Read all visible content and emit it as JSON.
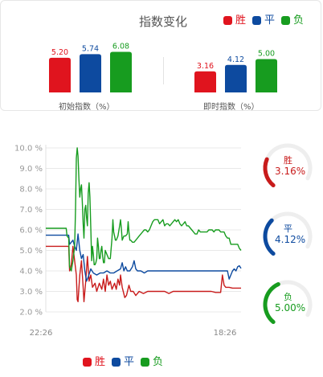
{
  "header": {
    "title": "指数变化",
    "legend": [
      {
        "label": "胜",
        "color": "#e0141e"
      },
      {
        "label": "平",
        "color": "#0d4a9f"
      },
      {
        "label": "负",
        "color": "#179c1f"
      }
    ]
  },
  "bar_groups": [
    {
      "label": "初始指数（%）",
      "values": [
        {
          "name": "胜",
          "value": "5.20"
        },
        {
          "name": "平",
          "value": "5.74"
        },
        {
          "name": "负",
          "value": "6.08"
        }
      ]
    },
    {
      "label": "即时指数（%）",
      "values": [
        {
          "name": "胜",
          "value": "3.16"
        },
        {
          "name": "平",
          "value": "4.12"
        },
        {
          "name": "负",
          "value": "5.00"
        }
      ]
    }
  ],
  "gauges": [
    {
      "label": "胜",
      "value": "3.16%",
      "fraction": 0.316,
      "color": "#c81b1b"
    },
    {
      "label": "平",
      "value": "4.12%",
      "fraction": 0.412,
      "color": "#0d4a9f"
    },
    {
      "label": "负",
      "value": "5.00%",
      "fraction": 0.5,
      "color": "#179c1f"
    }
  ],
  "chart_data": {
    "type": "line",
    "ylim": [
      2.0,
      10.0
    ],
    "y_ticks": [
      "2.0 %",
      "3.0 %",
      "4.0 %",
      "5.0 %",
      "6.0 %",
      "7.0 %",
      "8.0 %",
      "9.0 %",
      "10.0 %"
    ],
    "x_tick_labels": [
      "22:26",
      "18:26"
    ],
    "grid": true,
    "legend_position": "bottom",
    "series": [
      {
        "name": "胜",
        "color": "#c81b1b",
        "points": [
          [
            0,
            5.2
          ],
          [
            10,
            5.2
          ],
          [
            20,
            5.2
          ],
          [
            27,
            5.2
          ],
          [
            28,
            4.0
          ],
          [
            30,
            4.3
          ],
          [
            32,
            5.2
          ],
          [
            34,
            4.5
          ],
          [
            36,
            3.8
          ],
          [
            37,
            2.6
          ],
          [
            38,
            2.5
          ],
          [
            40,
            3.8
          ],
          [
            42,
            4.5
          ],
          [
            44,
            3.2
          ],
          [
            45,
            2.5
          ],
          [
            47,
            3.5
          ],
          [
            49,
            4.7
          ],
          [
            51,
            3.5
          ],
          [
            53,
            3.8
          ],
          [
            55,
            3.2
          ],
          [
            58,
            3.4
          ],
          [
            60,
            3.0
          ],
          [
            63,
            3.4
          ],
          [
            66,
            3.1
          ],
          [
            68,
            3.6
          ],
          [
            70,
            3.0
          ],
          [
            72,
            3.8
          ],
          [
            74,
            3.3
          ],
          [
            76,
            3.5
          ],
          [
            78,
            3.1
          ],
          [
            81,
            3.4
          ],
          [
            83,
            3.1
          ],
          [
            85,
            3.6
          ],
          [
            87,
            3.3
          ],
          [
            88,
            3.8
          ],
          [
            90,
            3.2
          ],
          [
            93,
            2.7
          ],
          [
            95,
            2.8
          ],
          [
            98,
            3.3
          ],
          [
            100,
            3.0
          ],
          [
            103,
            3.0
          ],
          [
            106,
            2.8
          ],
          [
            110,
            3.0
          ],
          [
            115,
            2.9
          ],
          [
            120,
            3.0
          ],
          [
            125,
            3.0
          ],
          [
            130,
            3.0
          ],
          [
            135,
            3.0
          ],
          [
            140,
            3.0
          ],
          [
            145,
            2.9
          ],
          [
            150,
            3.0
          ],
          [
            155,
            3.0
          ],
          [
            160,
            3.0
          ],
          [
            165,
            3.0
          ],
          [
            170,
            3.0
          ],
          [
            175,
            3.0
          ],
          [
            180,
            3.0
          ],
          [
            185,
            3.0
          ],
          [
            190,
            3.0
          ],
          [
            195,
            3.0
          ],
          [
            200,
            2.95
          ],
          [
            206,
            2.95
          ],
          [
            208,
            3.8
          ],
          [
            210,
            3.3
          ],
          [
            212,
            3.2
          ],
          [
            216,
            3.2
          ],
          [
            220,
            3.16
          ],
          [
            225,
            3.16
          ],
          [
            230,
            3.16
          ]
        ]
      },
      {
        "name": "平",
        "color": "#0d4a9f",
        "points": [
          [
            0,
            5.74
          ],
          [
            10,
            5.74
          ],
          [
            20,
            5.74
          ],
          [
            27,
            5.74
          ],
          [
            28,
            5.3
          ],
          [
            30,
            5.4
          ],
          [
            32,
            5.5
          ],
          [
            34,
            5.2
          ],
          [
            36,
            5.0
          ],
          [
            38,
            5.8
          ],
          [
            40,
            5.0
          ],
          [
            42,
            4.6
          ],
          [
            44,
            4.8
          ],
          [
            46,
            4.0
          ],
          [
            48,
            3.5
          ],
          [
            50,
            3.7
          ],
          [
            53,
            4.1
          ],
          [
            56,
            3.9
          ],
          [
            60,
            3.8
          ],
          [
            64,
            3.9
          ],
          [
            68,
            3.9
          ],
          [
            72,
            4.0
          ],
          [
            76,
            3.9
          ],
          [
            80,
            3.9
          ],
          [
            84,
            4.0
          ],
          [
            88,
            4.1
          ],
          [
            90,
            4.4
          ],
          [
            92,
            4.0
          ],
          [
            94,
            4.2
          ],
          [
            96,
            4.0
          ],
          [
            99,
            4.0
          ],
          [
            102,
            4.2
          ],
          [
            104,
            4.5
          ],
          [
            106,
            4.1
          ],
          [
            108,
            4.0
          ],
          [
            112,
            4.0
          ],
          [
            116,
            3.9
          ],
          [
            120,
            4.0
          ],
          [
            125,
            4.0
          ],
          [
            130,
            4.0
          ],
          [
            135,
            4.0
          ],
          [
            140,
            4.0
          ],
          [
            145,
            4.0
          ],
          [
            150,
            4.0
          ],
          [
            155,
            4.0
          ],
          [
            160,
            4.0
          ],
          [
            165,
            4.0
          ],
          [
            170,
            4.0
          ],
          [
            175,
            4.0
          ],
          [
            180,
            4.0
          ],
          [
            185,
            4.0
          ],
          [
            190,
            4.0
          ],
          [
            195,
            4.0
          ],
          [
            200,
            4.0
          ],
          [
            205,
            4.0
          ],
          [
            210,
            4.0
          ],
          [
            214,
            4.0
          ],
          [
            216,
            3.6
          ],
          [
            218,
            3.8
          ],
          [
            220,
            4.0
          ],
          [
            222,
            4.1
          ],
          [
            224,
            4.0
          ],
          [
            226,
            4.2
          ],
          [
            228,
            4.25
          ],
          [
            230,
            4.12
          ]
        ]
      },
      {
        "name": "负",
        "color": "#179c1f",
        "points": [
          [
            0,
            6.08
          ],
          [
            10,
            6.08
          ],
          [
            20,
            6.08
          ],
          [
            24,
            6.08
          ],
          [
            25,
            5.7
          ],
          [
            27,
            5.6
          ],
          [
            28,
            4.2
          ],
          [
            30,
            4.0
          ],
          [
            32,
            4.5
          ],
          [
            34,
            5.2
          ],
          [
            35,
            7.0
          ],
          [
            36,
            9.5
          ],
          [
            37,
            10.0
          ],
          [
            38,
            9.6
          ],
          [
            39,
            8.5
          ],
          [
            40,
            7.6
          ],
          [
            41,
            8.0
          ],
          [
            42,
            8.2
          ],
          [
            43,
            7.4
          ],
          [
            44,
            6.3
          ],
          [
            45,
            5.6
          ],
          [
            46,
            7.0
          ],
          [
            47,
            7.2
          ],
          [
            48,
            6.6
          ],
          [
            49,
            6.2
          ],
          [
            50,
            7.8
          ],
          [
            51,
            8.3
          ],
          [
            52,
            7.6
          ],
          [
            53,
            6.1
          ],
          [
            54,
            4.5
          ],
          [
            55,
            5.2
          ],
          [
            56,
            4.8
          ],
          [
            57,
            4.3
          ],
          [
            58,
            4.3
          ],
          [
            59,
            4.4
          ],
          [
            60,
            4.6
          ],
          [
            61,
            5.6
          ],
          [
            62,
            5.2
          ],
          [
            63,
            4.6
          ],
          [
            64,
            4.6
          ],
          [
            65,
            5.0
          ],
          [
            66,
            5.2
          ],
          [
            67,
            4.7
          ],
          [
            68,
            4.4
          ],
          [
            69,
            4.4
          ],
          [
            70,
            5.0
          ],
          [
            72,
            4.8
          ],
          [
            74,
            4.6
          ],
          [
            76,
            4.6
          ],
          [
            78,
            5.6
          ],
          [
            79,
            6.5
          ],
          [
            80,
            5.9
          ],
          [
            81,
            5.7
          ],
          [
            82,
            5.5
          ],
          [
            83,
            5.5
          ],
          [
            85,
            5.7
          ],
          [
            87,
            6.2
          ],
          [
            88,
            6.5
          ],
          [
            89,
            6.1
          ],
          [
            90,
            5.5
          ],
          [
            92,
            5.7
          ],
          [
            94,
            5.7
          ],
          [
            96,
            5.8
          ],
          [
            97,
            6.4
          ],
          [
            98,
            5.9
          ],
          [
            99,
            5.5
          ],
          [
            100,
            5.5
          ],
          [
            102,
            5.4
          ],
          [
            104,
            5.4
          ],
          [
            106,
            5.5
          ],
          [
            108,
            5.6
          ],
          [
            110,
            5.7
          ],
          [
            112,
            5.8
          ],
          [
            114,
            5.9
          ],
          [
            116,
            6.0
          ],
          [
            118,
            6.0
          ],
          [
            120,
            5.9
          ],
          [
            122,
            6.0
          ],
          [
            124,
            6.2
          ],
          [
            126,
            6.4
          ],
          [
            128,
            6.5
          ],
          [
            130,
            6.5
          ],
          [
            132,
            6.5
          ],
          [
            134,
            6.3
          ],
          [
            136,
            6.4
          ],
          [
            138,
            6.5
          ],
          [
            140,
            6.2
          ],
          [
            142,
            6.3
          ],
          [
            144,
            6.3
          ],
          [
            146,
            6.2
          ],
          [
            148,
            6.3
          ],
          [
            150,
            6.4
          ],
          [
            152,
            6.5
          ],
          [
            154,
            6.4
          ],
          [
            156,
            6.5
          ],
          [
            158,
            6.3
          ],
          [
            160,
            6.2
          ],
          [
            162,
            6.3
          ],
          [
            164,
            6.4
          ],
          [
            166,
            6.2
          ],
          [
            168,
            6.2
          ],
          [
            170,
            6.1
          ],
          [
            172,
            6.0
          ],
          [
            174,
            5.9
          ],
          [
            176,
            5.8
          ],
          [
            178,
            5.8
          ],
          [
            180,
            6.0
          ],
          [
            182,
            5.9
          ],
          [
            184,
            5.9
          ],
          [
            186,
            5.9
          ],
          [
            188,
            5.9
          ],
          [
            190,
            5.9
          ],
          [
            192,
            6.0
          ],
          [
            194,
            6.0
          ],
          [
            196,
            6.0
          ],
          [
            198,
            5.9
          ],
          [
            200,
            6.0
          ],
          [
            202,
            6.0
          ],
          [
            204,
            6.0
          ],
          [
            206,
            5.9
          ],
          [
            208,
            5.9
          ],
          [
            210,
            5.9
          ],
          [
            212,
            5.7
          ],
          [
            214,
            5.6
          ],
          [
            216,
            5.6
          ],
          [
            218,
            5.3
          ],
          [
            220,
            5.3
          ],
          [
            222,
            5.3
          ],
          [
            224,
            5.3
          ],
          [
            226,
            5.3
          ],
          [
            228,
            5.1
          ],
          [
            230,
            5.0
          ]
        ]
      }
    ]
  },
  "bottom_legend": [
    {
      "label": "胜",
      "color": "#e0141e"
    },
    {
      "label": "平",
      "color": "#0d4a9f"
    },
    {
      "label": "负",
      "color": "#179c1f"
    }
  ]
}
